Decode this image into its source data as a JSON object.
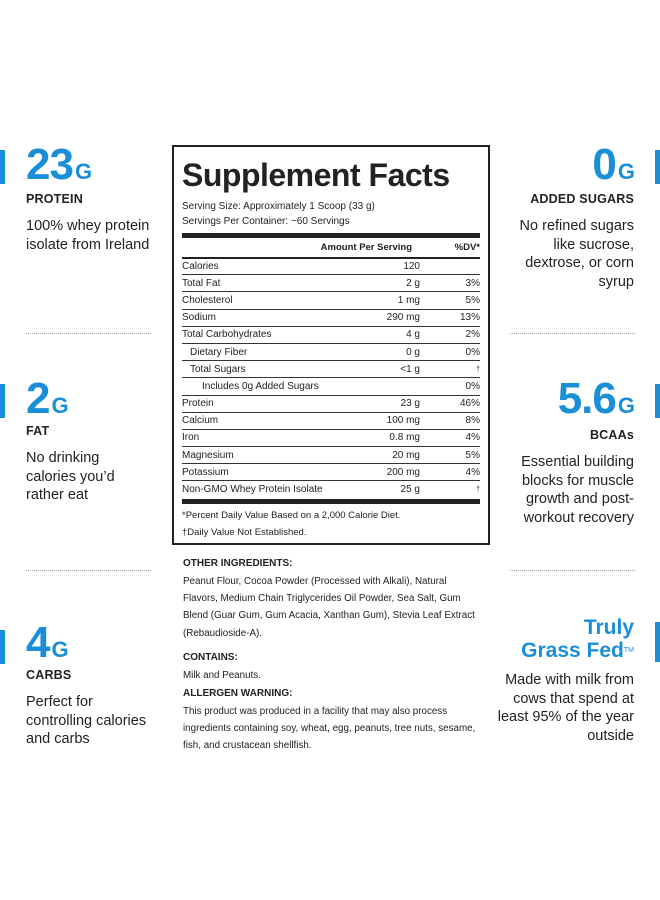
{
  "left": [
    {
      "value": "23",
      "unit": "G",
      "label": "PROTEIN",
      "desc": "100% whey protein isolate from Ireland"
    },
    {
      "value": "2",
      "unit": "G",
      "label": "FAT",
      "desc": "No drinking calories you’d rather eat"
    },
    {
      "value": "4",
      "unit": "G",
      "label": "CARBS",
      "desc": "Perfect for controlling calories and carbs"
    }
  ],
  "right": [
    {
      "value": "0",
      "unit": "G",
      "label": "ADDED SUGARS",
      "desc": "No refined sugars like sucrose, dextrose, or corn syrup"
    },
    {
      "value": "5.6",
      "unit": "G",
      "label": "BCAAs",
      "desc": "Essential building blocks for muscle growth and post-workout recovery"
    },
    {
      "title1": "Truly",
      "title2": "Grass Fed",
      "tm": "TM",
      "desc": "Made with milk from cows that spend at least 95% of the year outside"
    }
  ],
  "facts": {
    "title": "Supplement Facts",
    "serving_size": "Serving Size: Approximately 1 Scoop (33 g)",
    "servings_per": "Servings Per Container: ~60 Servings",
    "amount_header": "Amount Per Serving",
    "dv_header": "%DV*",
    "rows": [
      {
        "name": "Calories",
        "amount": "120",
        "dv": ""
      },
      {
        "name": "Total Fat",
        "amount": "2 g",
        "dv": "3%"
      },
      {
        "name": "Cholesterol",
        "amount": "1 mg",
        "dv": "5%"
      },
      {
        "name": "Sodium",
        "amount": "290 mg",
        "dv": "13%"
      },
      {
        "name": "Total Carbohydrates",
        "amount": "4 g",
        "dv": "2%"
      },
      {
        "name": "Dietary Fiber",
        "amount": "0 g",
        "dv": "0%"
      },
      {
        "name": "Total Sugars",
        "amount": "<1 g",
        "dv": "†"
      },
      {
        "name": "Includes 0g Added Sugars",
        "amount": "",
        "dv": "0%"
      },
      {
        "name": "Protein",
        "amount": "23 g",
        "dv": "46%"
      },
      {
        "name": "Calcium",
        "amount": "100 mg",
        "dv": "8%"
      },
      {
        "name": "Iron",
        "amount": "0.8 mg",
        "dv": "4%"
      },
      {
        "name": "Magnesium",
        "amount": "20 mg",
        "dv": "5%"
      },
      {
        "name": "Potassium",
        "amount": "200 mg",
        "dv": "4%"
      },
      {
        "name": "Non-GMO Whey Protein Isolate",
        "amount": "25 g",
        "dv": "†"
      }
    ],
    "footnote1": "*Percent Daily Value Based on a 2,000 Calorie Diet.",
    "footnote2": "†Daily Value Not Established."
  },
  "ingredients": {
    "other_h": "OTHER INGREDIENTS:",
    "other_t": "Peanut Flour, Cocoa Powder (Processed with Alkali), Natural Flavors, Medium Chain Triglycerides Oil Powder, Sea Salt, Gum Blend (Guar Gum, Gum Acacia, Xanthan Gum), Stevia Leaf Extract (Rebaudioside-A).",
    "contains_h": "CONTAINS:",
    "contains_t": "Milk and Peanuts.",
    "allergen_h": "ALLERGEN WARNING:",
    "allergen_t": "This product was produced in a facility that may also process ingredients containing soy, wheat, egg, peanuts, tree nuts, sesame, fish, and crustacean shellfish."
  },
  "colors": {
    "accent": "#1a8fd8",
    "text": "#222222"
  }
}
